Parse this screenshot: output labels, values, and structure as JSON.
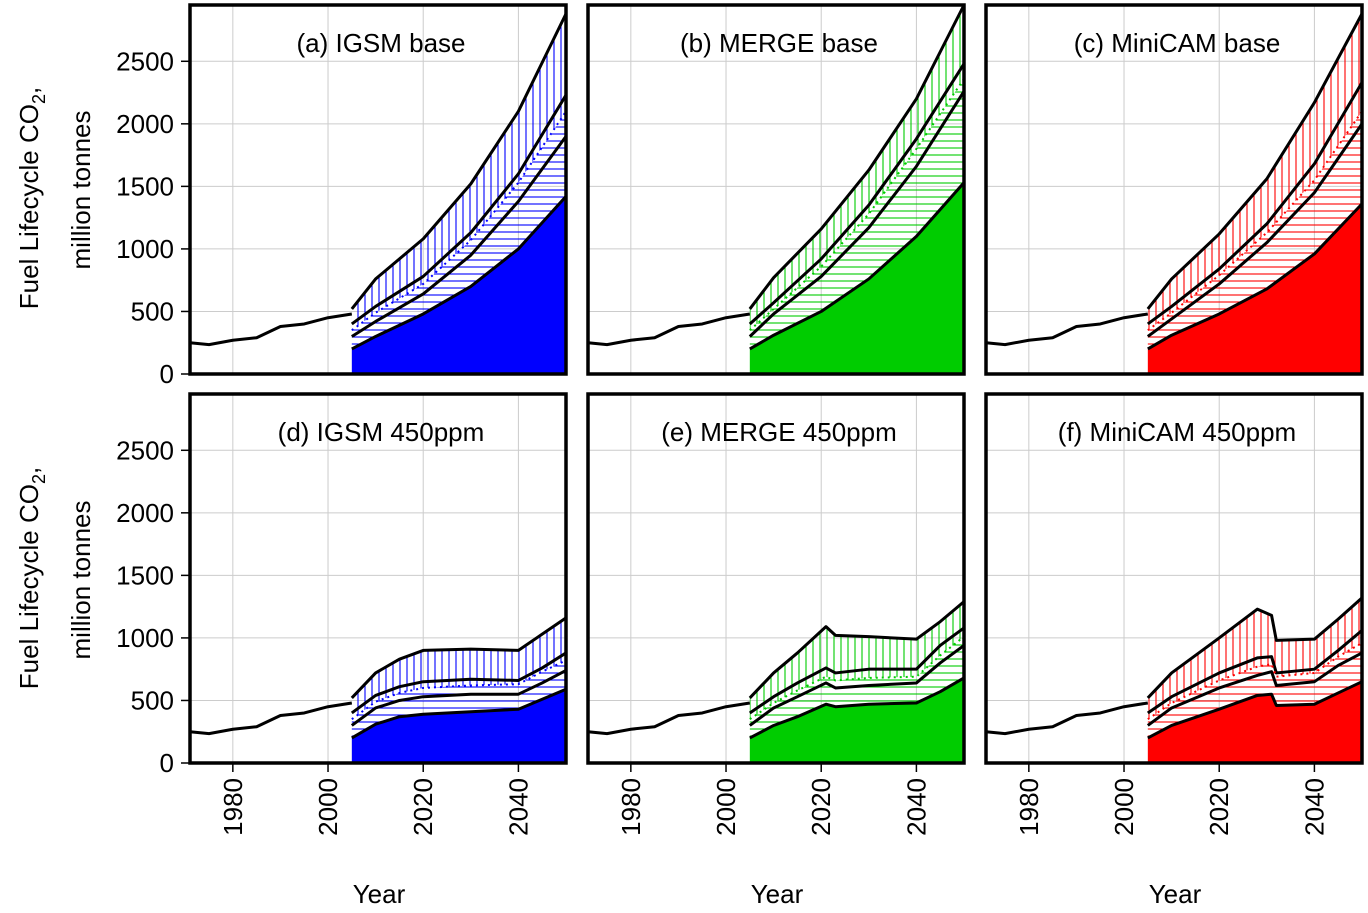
{
  "figure": {
    "ylabel_line1": "Fuel Lifecycle CO",
    "ylabel_sub": "2",
    "ylabel_comma": ",",
    "ylabel_line2": "million tonnes",
    "xlabel": "Year"
  },
  "chart_data": [
    {
      "type": "area",
      "title": "(a) IGSM base",
      "color": "#0000ff",
      "xlim": [
        1971,
        2050
      ],
      "ylim": [
        0,
        2950
      ],
      "xticks": [
        "1980",
        "2000",
        "2020",
        "2040"
      ],
      "yticks": [
        "0",
        "500",
        "1000",
        "1500",
        "2000",
        "2500"
      ],
      "grid": true,
      "historical": {
        "x": [
          1971,
          1975,
          1980,
          1985,
          1990,
          1995,
          2000,
          2005
        ],
        "y": [
          250,
          235,
          270,
          290,
          380,
          400,
          450,
          480
        ]
      },
      "projection_x": [
        2005,
        2010,
        2020,
        2030,
        2040,
        2050
      ],
      "series": [
        {
          "values": [
            200,
            300,
            480,
            700,
            1000,
            1420
          ]
        },
        {
          "values": [
            300,
            420,
            640,
            950,
            1380,
            1900
          ]
        },
        {
          "values": [
            350,
            490,
            720,
            1070,
            1530,
            2100
          ]
        },
        {
          "values": [
            400,
            540,
            780,
            1130,
            1600,
            2230
          ]
        },
        {
          "values": [
            520,
            760,
            1080,
            1520,
            2100,
            2880
          ]
        }
      ]
    },
    {
      "type": "area",
      "title": "(b) MERGE base",
      "color": "#00cc00",
      "xlim": [
        1971,
        2050
      ],
      "ylim": [
        0,
        2950
      ],
      "xticks": [
        "1980",
        "2000",
        "2020",
        "2040"
      ],
      "yticks": [
        "0",
        "500",
        "1000",
        "1500",
        "2000",
        "2500"
      ],
      "grid": true,
      "historical": {
        "x": [
          1971,
          1975,
          1980,
          1985,
          1990,
          1995,
          2000,
          2005
        ],
        "y": [
          250,
          235,
          270,
          290,
          380,
          400,
          450,
          480
        ]
      },
      "projection_x": [
        2005,
        2010,
        2020,
        2030,
        2040,
        2050
      ],
      "series": [
        {
          "values": [
            200,
            310,
            500,
            760,
            1100,
            1530
          ]
        },
        {
          "values": [
            300,
            480,
            780,
            1170,
            1660,
            2260
          ]
        },
        {
          "values": [
            350,
            520,
            860,
            1280,
            1800,
            2360
          ]
        },
        {
          "values": [
            400,
            570,
            920,
            1350,
            1880,
            2480
          ]
        },
        {
          "values": [
            520,
            770,
            1160,
            1630,
            2200,
            2950
          ]
        }
      ]
    },
    {
      "type": "area",
      "title": "(c) MiniCAM base",
      "color": "#ff0000",
      "xlim": [
        1971,
        2050
      ],
      "ylim": [
        0,
        2950
      ],
      "xticks": [
        "1980",
        "2000",
        "2020",
        "2040"
      ],
      "yticks": [
        "0",
        "500",
        "1000",
        "1500",
        "2000",
        "2500"
      ],
      "grid": true,
      "historical": {
        "x": [
          1971,
          1975,
          1980,
          1985,
          1990,
          1995,
          2000,
          2005
        ],
        "y": [
          250,
          235,
          270,
          290,
          380,
          400,
          450,
          480
        ]
      },
      "projection_x": [
        2005,
        2010,
        2020,
        2030,
        2040,
        2050
      ],
      "series": [
        {
          "values": [
            200,
            310,
            480,
            680,
            960,
            1360
          ]
        },
        {
          "values": [
            300,
            440,
            720,
            1050,
            1450,
            2000
          ]
        },
        {
          "values": [
            350,
            490,
            790,
            1130,
            1550,
            2100
          ]
        },
        {
          "values": [
            400,
            540,
            840,
            1200,
            1680,
            2330
          ]
        },
        {
          "values": [
            520,
            760,
            1120,
            1560,
            2170,
            2880
          ]
        }
      ]
    },
    {
      "type": "area",
      "title": "(d) IGSM 450ppm",
      "color": "#0000ff",
      "xlim": [
        1971,
        2050
      ],
      "ylim": [
        0,
        2950
      ],
      "xticks": [
        "1980",
        "2000",
        "2020",
        "2040"
      ],
      "yticks": [
        "0",
        "500",
        "1000",
        "1500",
        "2000",
        "2500"
      ],
      "grid": true,
      "historical": {
        "x": [
          1971,
          1975,
          1980,
          1985,
          1990,
          1995,
          2000,
          2005
        ],
        "y": [
          250,
          235,
          270,
          290,
          380,
          400,
          450,
          480
        ]
      },
      "projection_x": [
        2005,
        2010,
        2015,
        2020,
        2030,
        2040,
        2045,
        2050
      ],
      "series": [
        {
          "values": [
            200,
            310,
            370,
            390,
            410,
            430,
            510,
            590
          ]
        },
        {
          "values": [
            300,
            440,
            500,
            530,
            550,
            550,
            640,
            740
          ]
        },
        {
          "values": [
            350,
            490,
            560,
            600,
            620,
            630,
            730,
            820
          ]
        },
        {
          "values": [
            400,
            540,
            610,
            650,
            670,
            660,
            760,
            880
          ]
        },
        {
          "values": [
            520,
            720,
            830,
            900,
            910,
            900,
            1030,
            1160
          ]
        }
      ]
    },
    {
      "type": "area",
      "title": "(e) MERGE 450ppm",
      "color": "#00cc00",
      "xlim": [
        1971,
        2050
      ],
      "ylim": [
        0,
        2950
      ],
      "xticks": [
        "1980",
        "2000",
        "2020",
        "2040"
      ],
      "yticks": [
        "0",
        "500",
        "1000",
        "1500",
        "2000",
        "2500"
      ],
      "grid": true,
      "historical": {
        "x": [
          1971,
          1975,
          1980,
          1985,
          1990,
          1995,
          2000,
          2005
        ],
        "y": [
          250,
          235,
          270,
          290,
          380,
          400,
          450,
          480
        ]
      },
      "projection_x": [
        2005,
        2010,
        2015,
        2021,
        2023,
        2030,
        2040,
        2045,
        2050
      ],
      "series": [
        {
          "values": [
            200,
            300,
            370,
            470,
            450,
            470,
            480,
            570,
            680
          ]
        },
        {
          "values": [
            300,
            440,
            530,
            640,
            600,
            620,
            640,
            800,
            940
          ]
        },
        {
          "values": [
            350,
            480,
            580,
            690,
            660,
            680,
            690,
            860,
            1010
          ]
        },
        {
          "values": [
            400,
            530,
            640,
            760,
            720,
            750,
            750,
            940,
            1080
          ]
        },
        {
          "values": [
            520,
            720,
            880,
            1090,
            1020,
            1010,
            990,
            1130,
            1290
          ]
        }
      ]
    },
    {
      "type": "area",
      "title": "(f) MiniCAM 450ppm",
      "color": "#ff0000",
      "xlim": [
        1971,
        2050
      ],
      "ylim": [
        0,
        2950
      ],
      "xticks": [
        "1980",
        "2000",
        "2020",
        "2040"
      ],
      "yticks": [
        "0",
        "500",
        "1000",
        "1500",
        "2000",
        "2500"
      ],
      "grid": true,
      "historical": {
        "x": [
          1971,
          1975,
          1980,
          1985,
          1990,
          1995,
          2000,
          2005
        ],
        "y": [
          250,
          235,
          270,
          290,
          380,
          400,
          450,
          480
        ]
      },
      "projection_x": [
        2005,
        2010,
        2020,
        2028,
        2031,
        2032,
        2040,
        2045,
        2050
      ],
      "series": [
        {
          "values": [
            200,
            300,
            430,
            540,
            550,
            460,
            470,
            560,
            650
          ]
        },
        {
          "values": [
            300,
            440,
            600,
            700,
            730,
            620,
            650,
            780,
            880
          ]
        },
        {
          "values": [
            350,
            480,
            660,
            770,
            790,
            690,
            720,
            850,
            960
          ]
        },
        {
          "values": [
            400,
            530,
            720,
            840,
            850,
            720,
            750,
            900,
            1060
          ]
        },
        {
          "values": [
            520,
            720,
            1000,
            1230,
            1180,
            980,
            990,
            1150,
            1320
          ]
        }
      ]
    }
  ]
}
